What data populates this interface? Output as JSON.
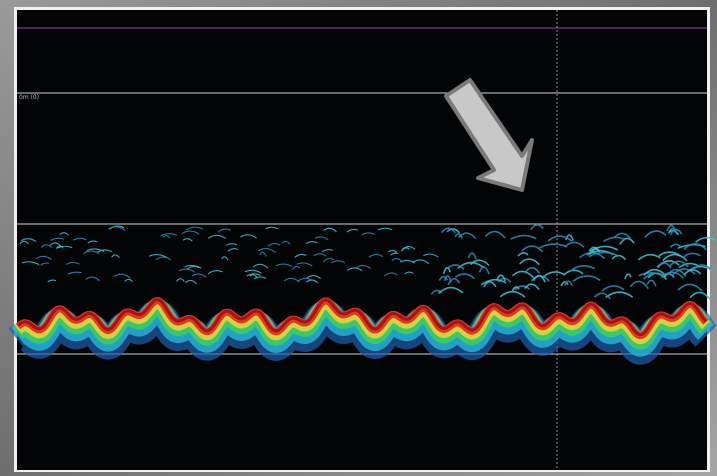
{
  "panel": {
    "depth_label": "0m (0)"
  }
}
